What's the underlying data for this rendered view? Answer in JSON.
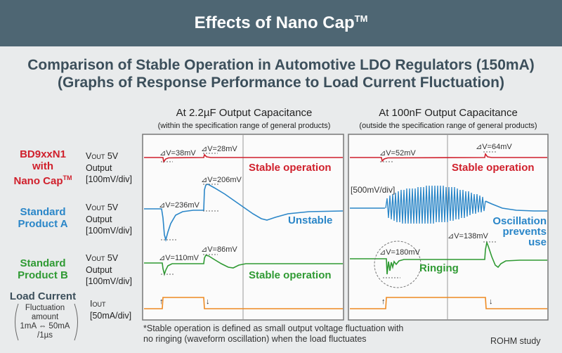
{
  "banner": {
    "title": "Effects of Nano Cap",
    "tm": "TM"
  },
  "heading": {
    "line1": "Comparison of Stable Operation in Automotive LDO Regulators (150mA)",
    "line2": "(Graphs of Response Performance to Load Current Fluctuation)"
  },
  "columns": {
    "left": {
      "title": "At 2.2µF Output Capacitance",
      "subtitle": "(within the specification range of general products)"
    },
    "right": {
      "title": "At 100nF Output Capacitance",
      "subtitle": "(outside the specification range of general products)"
    }
  },
  "rows": {
    "bd9": {
      "line1": "BD9xxN1",
      "line2": "with",
      "line3": "Nano Cap",
      "tm": "TM",
      "color": "#d0202c"
    },
    "std_a": {
      "line1": "Standard",
      "line2": "Product A",
      "color": "#2a86c8"
    },
    "std_b": {
      "line1": "Standard",
      "line2": "Product B",
      "color": "#2f9a33"
    },
    "load": {
      "line1": "Load Current",
      "color": "#3c4f5b"
    }
  },
  "signal": {
    "v": "V",
    "vsub": "OUT",
    "v_value": " 5V",
    "output": "Output",
    "div100": "[100mV/div]",
    "i": "I",
    "isub": "OUT",
    "div50": "[50mA/div]"
  },
  "fluctuation": {
    "l1": "Fluctuation",
    "l2": "amount",
    "l3": "1mA ⇔ 50mA",
    "l4": "/1µs"
  },
  "annotations": {
    "l_bd9_a": "⊿V=38mV",
    "l_bd9_b": "⊿V=28mV",
    "l_bd9_status": "Stable operation",
    "l_a_a": "⊿V=236mV",
    "l_a_b": "⊿V=206mV",
    "l_a_status": "Unstable",
    "l_b_a": "⊿V=110mV",
    "l_b_b": "⊿V=86mV",
    "l_b_status": "Stable operation",
    "r_bd9_a": "⊿V=52mV",
    "r_bd9_b": "⊿V=64mV",
    "r_bd9_status": "Stable operation",
    "r_scale": "[500mV/div]",
    "r_a_l1": "Oscillation",
    "r_a_l2": "prevents",
    "r_a_l3": "use",
    "r_b_a": "⊿V=180mV",
    "r_b_b": "⊿V=138mV",
    "r_b_status": "Ringing"
  },
  "footnote": {
    "line1": "*Stable operation is defined as small output voltage fluctuation with",
    "line2": " no ringing (waveform oscillation) when the load fluctuates"
  },
  "credit": "ROHM study",
  "colors": {
    "red": "#d0202c",
    "blue": "#2a86c8",
    "green": "#2f9a33",
    "orange": "#ee8a22",
    "banner": "#4e6673"
  }
}
